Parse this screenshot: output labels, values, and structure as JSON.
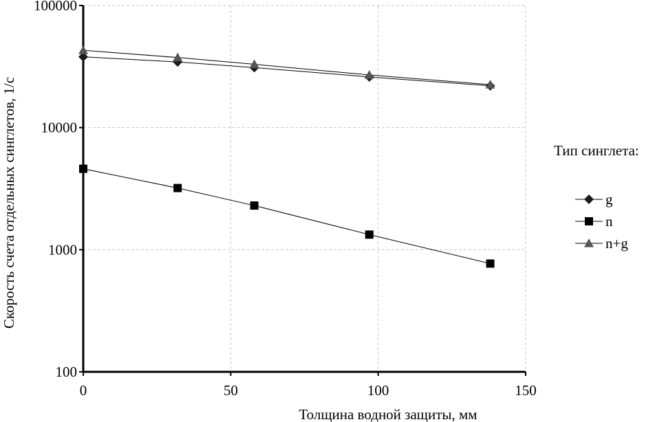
{
  "chart_data": {
    "type": "line",
    "y_scale": "log",
    "xlabel": "Толщина  водной защиты, мм",
    "ylabel": "Скорость счета  отдельных синглетов, 1/с",
    "xlim": [
      0,
      150
    ],
    "ylim": [
      100,
      100000
    ],
    "x_ticks": [
      0,
      50,
      100,
      150
    ],
    "x_tick_labels": [
      "0",
      "50",
      "100",
      "150"
    ],
    "y_ticks": [
      100,
      1000,
      10000,
      100000
    ],
    "y_tick_labels": [
      "100",
      "1000",
      "10000",
      "100000"
    ],
    "grid": true,
    "legend_title": "Тип синглета:",
    "legend_position": "right",
    "series": [
      {
        "name": "g",
        "marker": "diamond",
        "x": [
          0,
          32,
          58,
          97,
          138
        ],
        "values": [
          38000,
          34500,
          31000,
          26000,
          22000
        ]
      },
      {
        "name": "n",
        "marker": "square",
        "x": [
          0,
          32,
          58,
          97,
          138
        ],
        "values": [
          4600,
          3200,
          2300,
          1330,
          770
        ]
      },
      {
        "name": "n+g",
        "marker": "triangle",
        "x": [
          0,
          32,
          58,
          97,
          138
        ],
        "values": [
          43000,
          37500,
          33000,
          27000,
          22500
        ]
      }
    ],
    "colors": {
      "g": "#1a1a1a",
      "n": "#000000",
      "n+g": "#555555",
      "grid": "#c8c8c8"
    }
  }
}
